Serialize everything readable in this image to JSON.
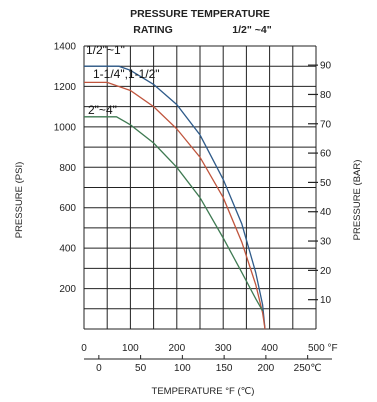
{
  "colors": {
    "background": "#ffffff",
    "grid": "#222222",
    "series_1": "#2f5b8a",
    "series_2": "#c0553d",
    "series_3": "#3f7a52"
  },
  "chart_data": {
    "type": "line",
    "title": "PRESSURE TEMPERATURE",
    "subtitle_left": "RATING",
    "subtitle_right": "1/2\"  ~4\"",
    "xlabel": "TEMPERATURE °F (℃)",
    "ylabel_left": "PRESSURE (PSI)",
    "ylabel_right": "PRESSURE (BAR)",
    "xlim": [
      0,
      500
    ],
    "ylim": [
      0,
      1400
    ],
    "x_ticks": [
      "0",
      "100",
      "200",
      "300",
      "400",
      "500 °F"
    ],
    "x_tick_values": [
      0,
      100,
      200,
      300,
      400,
      500
    ],
    "y_ticks": [
      "1400",
      "1200",
      "1000",
      "800",
      "600",
      "400",
      "200"
    ],
    "y_tick_values": [
      1400,
      1200,
      1000,
      800,
      600,
      400,
      200
    ],
    "x2_ticks": [
      "0",
      "50",
      "100",
      "150",
      "200",
      "250℃"
    ],
    "x2_tick_values": [
      0,
      50,
      100,
      150,
      200,
      250
    ],
    "y2_ticks": [
      "90",
      "80",
      "70",
      "60",
      "50",
      "40",
      "30",
      "20",
      "10"
    ],
    "y2_tick_values": [
      90,
      80,
      70,
      60,
      50,
      40,
      30,
      20,
      10
    ],
    "grid": true,
    "series": [
      {
        "name": "1/2\"~1\"",
        "x": [
          0,
          75,
          100,
          150,
          200,
          250,
          300,
          340,
          370,
          385,
          390
        ],
        "y": [
          1300,
          1300,
          1280,
          1210,
          1110,
          960,
          740,
          520,
          280,
          120,
          0
        ]
      },
      {
        "name": "1-1/4\",1-1/2\"",
        "x": [
          0,
          50,
          100,
          150,
          200,
          250,
          300,
          340,
          370,
          385,
          390
        ],
        "y": [
          1220,
          1220,
          1180,
          1100,
          990,
          850,
          650,
          430,
          220,
          80,
          0
        ]
      },
      {
        "name": "2\"~4\"",
        "x": [
          0,
          70,
          100,
          150,
          200,
          250,
          300,
          340,
          370,
          385
        ],
        "y": [
          1050,
          1050,
          1010,
          920,
          800,
          650,
          450,
          280,
          150,
          90
        ]
      }
    ]
  }
}
